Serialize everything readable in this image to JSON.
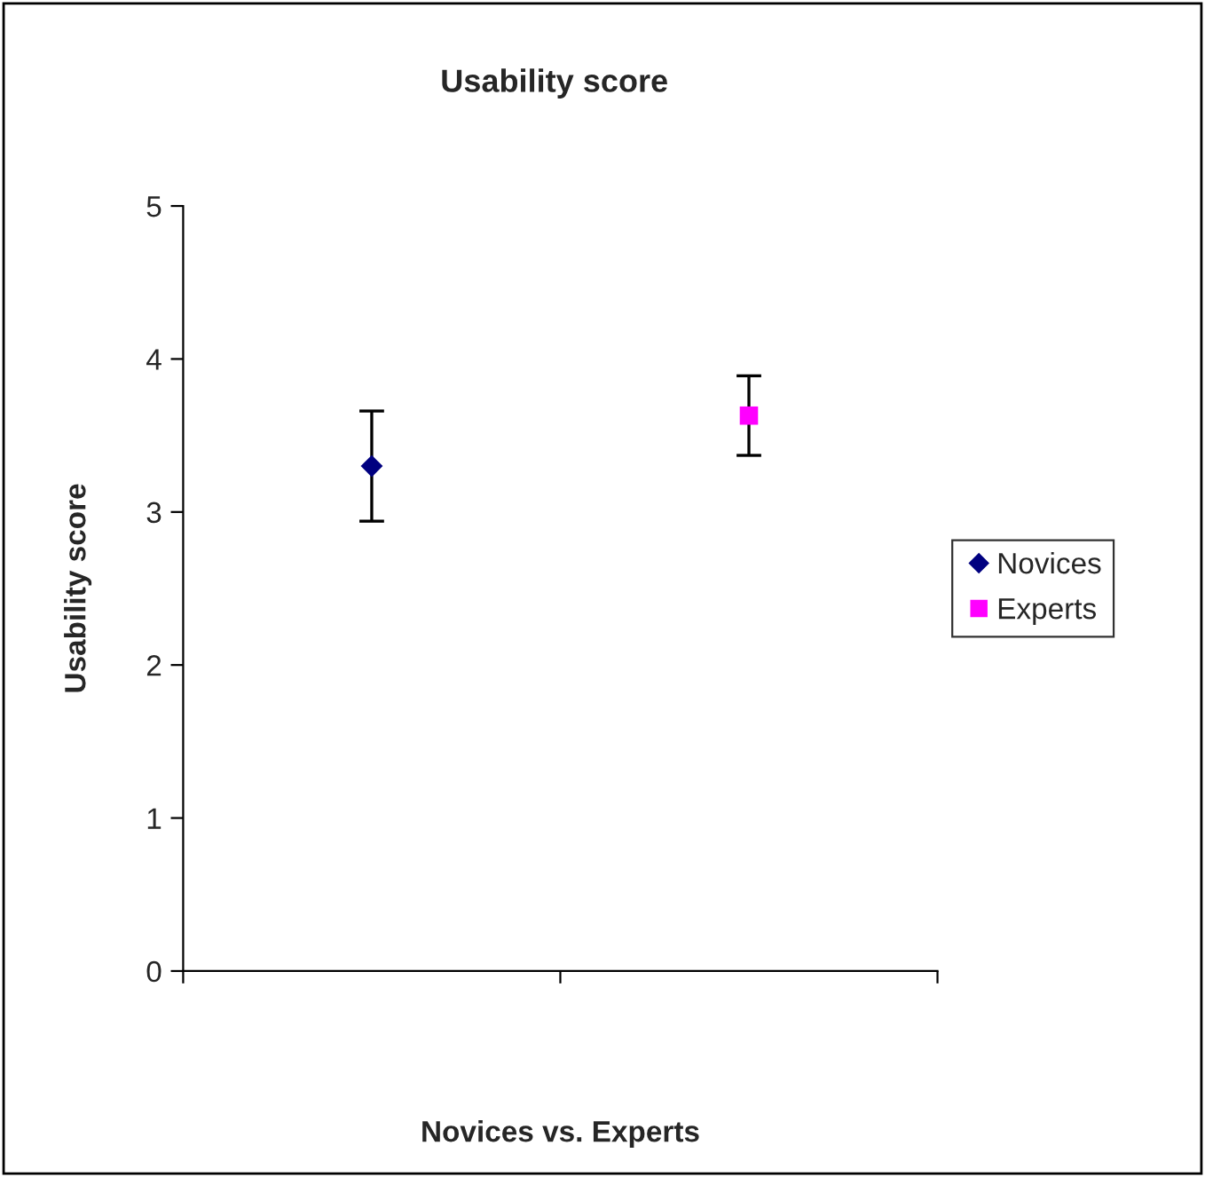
{
  "chart_data": {
    "type": "scatter",
    "title": "Usability score",
    "xlabel": "Novices vs. Experts",
    "ylabel": "Usability score",
    "categories": [
      null,
      null
    ],
    "series": [
      {
        "name": "Novices",
        "color": "#000080",
        "marker": "diamond",
        "values": [
          3.3,
          null
        ],
        "errors": [
          0.36,
          null
        ]
      },
      {
        "name": "Experts",
        "color": "#ff00ff",
        "marker": "square",
        "values": [
          null,
          3.63
        ],
        "errors": [
          null,
          0.26
        ]
      }
    ],
    "ylim": [
      0,
      5
    ],
    "yticks": [
      0,
      1,
      2,
      3,
      4,
      5
    ],
    "grid": false,
    "legend": "right"
  }
}
